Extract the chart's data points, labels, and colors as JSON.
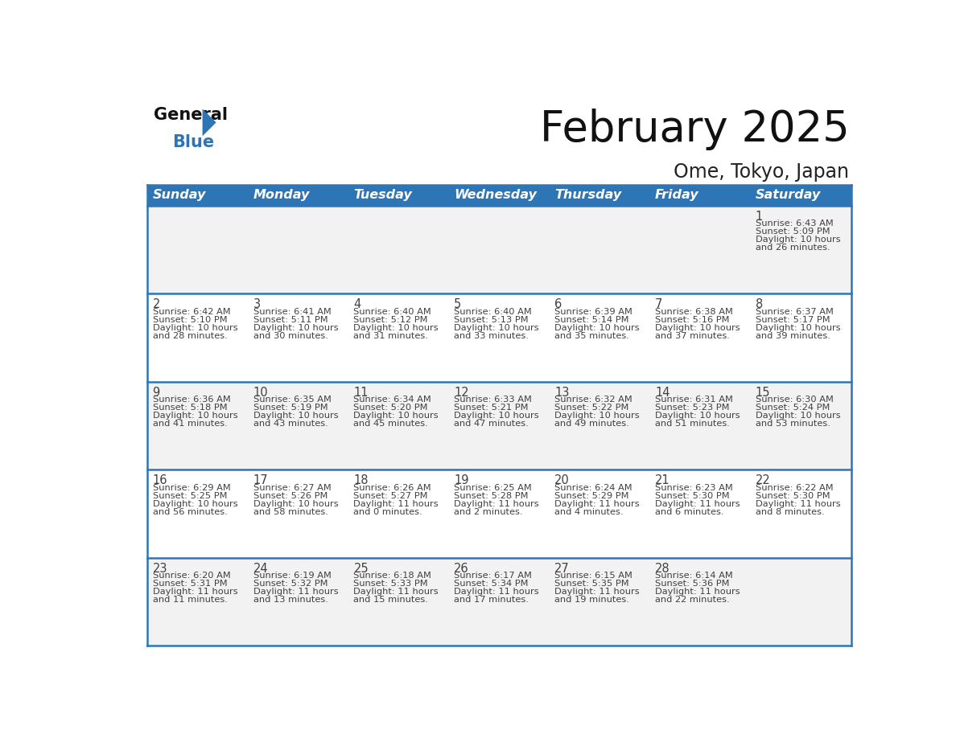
{
  "title": "February 2025",
  "subtitle": "Ome, Tokyo, Japan",
  "days_of_week": [
    "Sunday",
    "Monday",
    "Tuesday",
    "Wednesday",
    "Thursday",
    "Friday",
    "Saturday"
  ],
  "header_bg": "#2E75B6",
  "header_text": "#FFFFFF",
  "cell_bg_odd": "#F2F2F2",
  "cell_bg_even": "#FFFFFF",
  "border_color": "#2E75B6",
  "text_color": "#404040",
  "calendar": [
    [
      null,
      null,
      null,
      null,
      null,
      null,
      {
        "day": "1",
        "sunrise": "6:43 AM",
        "sunset": "5:09 PM",
        "daylight_h": "10 hours",
        "daylight_m": "and 26 minutes."
      }
    ],
    [
      {
        "day": "2",
        "sunrise": "6:42 AM",
        "sunset": "5:10 PM",
        "daylight_h": "10 hours",
        "daylight_m": "and 28 minutes."
      },
      {
        "day": "3",
        "sunrise": "6:41 AM",
        "sunset": "5:11 PM",
        "daylight_h": "10 hours",
        "daylight_m": "and 30 minutes."
      },
      {
        "day": "4",
        "sunrise": "6:40 AM",
        "sunset": "5:12 PM",
        "daylight_h": "10 hours",
        "daylight_m": "and 31 minutes."
      },
      {
        "day": "5",
        "sunrise": "6:40 AM",
        "sunset": "5:13 PM",
        "daylight_h": "10 hours",
        "daylight_m": "and 33 minutes."
      },
      {
        "day": "6",
        "sunrise": "6:39 AM",
        "sunset": "5:14 PM",
        "daylight_h": "10 hours",
        "daylight_m": "and 35 minutes."
      },
      {
        "day": "7",
        "sunrise": "6:38 AM",
        "sunset": "5:16 PM",
        "daylight_h": "10 hours",
        "daylight_m": "and 37 minutes."
      },
      {
        "day": "8",
        "sunrise": "6:37 AM",
        "sunset": "5:17 PM",
        "daylight_h": "10 hours",
        "daylight_m": "and 39 minutes."
      }
    ],
    [
      {
        "day": "9",
        "sunrise": "6:36 AM",
        "sunset": "5:18 PM",
        "daylight_h": "10 hours",
        "daylight_m": "and 41 minutes."
      },
      {
        "day": "10",
        "sunrise": "6:35 AM",
        "sunset": "5:19 PM",
        "daylight_h": "10 hours",
        "daylight_m": "and 43 minutes."
      },
      {
        "day": "11",
        "sunrise": "6:34 AM",
        "sunset": "5:20 PM",
        "daylight_h": "10 hours",
        "daylight_m": "and 45 minutes."
      },
      {
        "day": "12",
        "sunrise": "6:33 AM",
        "sunset": "5:21 PM",
        "daylight_h": "10 hours",
        "daylight_m": "and 47 minutes."
      },
      {
        "day": "13",
        "sunrise": "6:32 AM",
        "sunset": "5:22 PM",
        "daylight_h": "10 hours",
        "daylight_m": "and 49 minutes."
      },
      {
        "day": "14",
        "sunrise": "6:31 AM",
        "sunset": "5:23 PM",
        "daylight_h": "10 hours",
        "daylight_m": "and 51 minutes."
      },
      {
        "day": "15",
        "sunrise": "6:30 AM",
        "sunset": "5:24 PM",
        "daylight_h": "10 hours",
        "daylight_m": "and 53 minutes."
      }
    ],
    [
      {
        "day": "16",
        "sunrise": "6:29 AM",
        "sunset": "5:25 PM",
        "daylight_h": "10 hours",
        "daylight_m": "and 56 minutes."
      },
      {
        "day": "17",
        "sunrise": "6:27 AM",
        "sunset": "5:26 PM",
        "daylight_h": "10 hours",
        "daylight_m": "and 58 minutes."
      },
      {
        "day": "18",
        "sunrise": "6:26 AM",
        "sunset": "5:27 PM",
        "daylight_h": "11 hours",
        "daylight_m": "and 0 minutes."
      },
      {
        "day": "19",
        "sunrise": "6:25 AM",
        "sunset": "5:28 PM",
        "daylight_h": "11 hours",
        "daylight_m": "and 2 minutes."
      },
      {
        "day": "20",
        "sunrise": "6:24 AM",
        "sunset": "5:29 PM",
        "daylight_h": "11 hours",
        "daylight_m": "and 4 minutes."
      },
      {
        "day": "21",
        "sunrise": "6:23 AM",
        "sunset": "5:30 PM",
        "daylight_h": "11 hours",
        "daylight_m": "and 6 minutes."
      },
      {
        "day": "22",
        "sunrise": "6:22 AM",
        "sunset": "5:30 PM",
        "daylight_h": "11 hours",
        "daylight_m": "and 8 minutes."
      }
    ],
    [
      {
        "day": "23",
        "sunrise": "6:20 AM",
        "sunset": "5:31 PM",
        "daylight_h": "11 hours",
        "daylight_m": "and 11 minutes."
      },
      {
        "day": "24",
        "sunrise": "6:19 AM",
        "sunset": "5:32 PM",
        "daylight_h": "11 hours",
        "daylight_m": "and 13 minutes."
      },
      {
        "day": "25",
        "sunrise": "6:18 AM",
        "sunset": "5:33 PM",
        "daylight_h": "11 hours",
        "daylight_m": "and 15 minutes."
      },
      {
        "day": "26",
        "sunrise": "6:17 AM",
        "sunset": "5:34 PM",
        "daylight_h": "11 hours",
        "daylight_m": "and 17 minutes."
      },
      {
        "day": "27",
        "sunrise": "6:15 AM",
        "sunset": "5:35 PM",
        "daylight_h": "11 hours",
        "daylight_m": "and 19 minutes."
      },
      {
        "day": "28",
        "sunrise": "6:14 AM",
        "sunset": "5:36 PM",
        "daylight_h": "11 hours",
        "daylight_m": "and 22 minutes."
      },
      null
    ]
  ],
  "title_fontsize": 38,
  "subtitle_fontsize": 17,
  "header_fontsize": 11.5,
  "day_num_fontsize": 10.5,
  "cell_text_fontsize": 8.2
}
